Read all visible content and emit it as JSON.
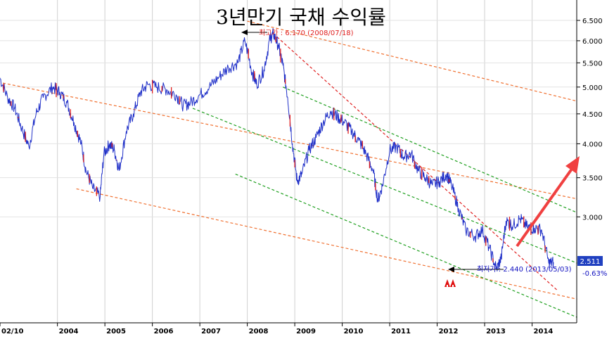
{
  "chart_data": {
    "type": "line",
    "title": "3년만기 국채 수익률",
    "x_tick_labels": [
      "02/10",
      "2004",
      "2005",
      "2006",
      "2007",
      "2008",
      "2009",
      "2010",
      "2011",
      "2012",
      "2013",
      "2014"
    ],
    "y_tick_labels": [
      "6.500",
      "6.000",
      "5.500",
      "5.000",
      "4.500",
      "4.000",
      "3.500",
      "3.000"
    ],
    "ylim": [
      2.0,
      6.8
    ],
    "y_scale": "log",
    "grid": true,
    "last_value": "2.511",
    "change": "-0.63%",
    "high_annotation": "최고가 : 6.170 (2008/07/18)",
    "low_annotation": "최저가 : 2.440 (2013/05/03)",
    "series": [
      {
        "color": "#2030c8",
        "points": [
          [
            2002.78,
            5.2
          ],
          [
            2002.95,
            4.8
          ],
          [
            2003.1,
            4.6
          ],
          [
            2003.25,
            4.25
          ],
          [
            2003.4,
            3.95
          ],
          [
            2003.55,
            4.5
          ],
          [
            2003.7,
            4.8
          ],
          [
            2003.9,
            5.0
          ],
          [
            2004.05,
            4.9
          ],
          [
            2004.2,
            4.7
          ],
          [
            2004.35,
            4.35
          ],
          [
            2004.5,
            4.0
          ],
          [
            2004.6,
            3.6
          ],
          [
            2004.75,
            3.35
          ],
          [
            2004.9,
            3.25
          ],
          [
            2004.98,
            3.85
          ],
          [
            2005.1,
            4.0
          ],
          [
            2005.2,
            3.9
          ],
          [
            2005.3,
            3.6
          ],
          [
            2005.45,
            4.2
          ],
          [
            2005.6,
            4.5
          ],
          [
            2005.75,
            4.9
          ],
          [
            2005.9,
            5.05
          ],
          [
            2006.1,
            5.0
          ],
          [
            2006.3,
            4.95
          ],
          [
            2006.5,
            4.85
          ],
          [
            2006.65,
            4.65
          ],
          [
            2006.8,
            4.7
          ],
          [
            2007.0,
            4.85
          ],
          [
            2007.2,
            5.0
          ],
          [
            2007.4,
            5.2
          ],
          [
            2007.6,
            5.4
          ],
          [
            2007.8,
            5.5
          ],
          [
            2007.95,
            6.0
          ],
          [
            2008.1,
            5.3
          ],
          [
            2008.2,
            5.05
          ],
          [
            2008.35,
            5.35
          ],
          [
            2008.48,
            6.05
          ],
          [
            2008.55,
            6.17
          ],
          [
            2008.65,
            5.9
          ],
          [
            2008.75,
            5.45
          ],
          [
            2008.85,
            4.8
          ],
          [
            2008.95,
            4.0
          ],
          [
            2009.05,
            3.45
          ],
          [
            2009.15,
            3.55
          ],
          [
            2009.3,
            3.9
          ],
          [
            2009.45,
            4.1
          ],
          [
            2009.6,
            4.35
          ],
          [
            2009.75,
            4.55
          ],
          [
            2009.9,
            4.45
          ],
          [
            2010.05,
            4.35
          ],
          [
            2010.2,
            4.2
          ],
          [
            2010.35,
            4.05
          ],
          [
            2010.5,
            3.85
          ],
          [
            2010.65,
            3.6
          ],
          [
            2010.75,
            3.2
          ],
          [
            2010.85,
            3.4
          ],
          [
            2011.0,
            3.9
          ],
          [
            2011.15,
            3.95
          ],
          [
            2011.3,
            3.8
          ],
          [
            2011.45,
            3.85
          ],
          [
            2011.6,
            3.6
          ],
          [
            2011.75,
            3.5
          ],
          [
            2011.9,
            3.4
          ],
          [
            2012.05,
            3.45
          ],
          [
            2012.2,
            3.55
          ],
          [
            2012.3,
            3.4
          ],
          [
            2012.45,
            3.1
          ],
          [
            2012.6,
            2.85
          ],
          [
            2012.8,
            2.78
          ],
          [
            2012.95,
            2.85
          ],
          [
            2013.1,
            2.65
          ],
          [
            2013.25,
            2.44
          ],
          [
            2013.35,
            2.55
          ],
          [
            2013.45,
            2.95
          ],
          [
            2013.6,
            2.9
          ],
          [
            2013.75,
            2.98
          ],
          [
            2013.9,
            2.88
          ],
          [
            2014.05,
            2.87
          ],
          [
            2014.2,
            2.85
          ],
          [
            2014.35,
            2.5
          ],
          [
            2014.45,
            2.51
          ]
        ]
      }
    ],
    "trend_lines": [
      {
        "color": "#f07030",
        "points": [
          [
            2002.85,
            5.08
          ],
          [
            2014.95,
            3.22
          ]
        ]
      },
      {
        "color": "#f07030",
        "points": [
          [
            2004.4,
            3.35
          ],
          [
            2014.95,
            2.17
          ]
        ]
      },
      {
        "color": "#f07030",
        "points": [
          [
            2008.0,
            6.48
          ],
          [
            2014.95,
            4.73
          ]
        ]
      },
      {
        "color": "#e02020",
        "points": [
          [
            2008.55,
            6.17
          ],
          [
            2014.55,
            2.24
          ]
        ]
      },
      {
        "color": "#20a020",
        "points": [
          [
            2006.85,
            4.6
          ],
          [
            2014.95,
            2.5
          ]
        ]
      },
      {
        "color": "#20a020",
        "points": [
          [
            2008.75,
            5.0
          ],
          [
            2014.95,
            3.05
          ]
        ]
      },
      {
        "color": "#20a020",
        "points": [
          [
            2007.75,
            3.55
          ],
          [
            2014.95,
            2.02
          ]
        ]
      }
    ]
  }
}
